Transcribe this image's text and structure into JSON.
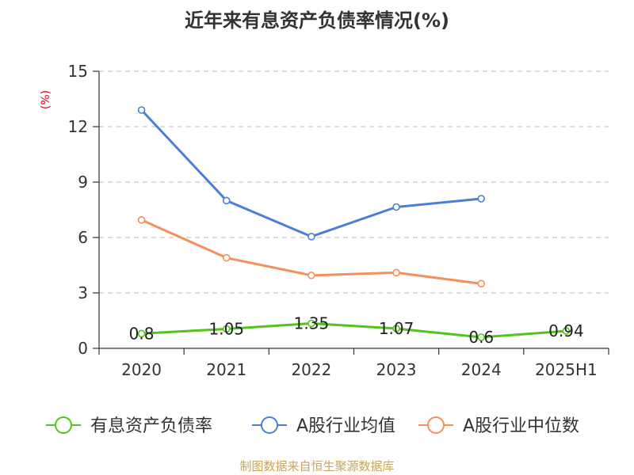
{
  "chart_data": {
    "type": "line",
    "title": "近年来有息资产负债率情况(%)",
    "ylabel": "(%)",
    "categories": [
      "2020",
      "2021",
      "2022",
      "2023",
      "2024",
      "2025H1"
    ],
    "ylim": [
      0,
      15
    ],
    "yticks": [
      "0",
      "3",
      "6",
      "9",
      "12",
      "15"
    ],
    "grid": true,
    "series": [
      {
        "name": "有息资产负债率",
        "color": "#52c41a",
        "values": [
          0.8,
          1.05,
          1.35,
          1.07,
          0.6,
          0.94
        ],
        "data_labels": [
          "0.8",
          "1.05",
          "1.35",
          "1.07",
          "0.6",
          "0.94"
        ]
      },
      {
        "name": "A股行业均值",
        "color": "#4a7fd8",
        "values": [
          12.9,
          8.0,
          6.05,
          7.65,
          8.1,
          null
        ]
      },
      {
        "name": "A股行业中位数",
        "color": "#f5905a",
        "values": [
          6.95,
          4.9,
          3.95,
          4.1,
          3.5,
          null
        ]
      }
    ],
    "legend_position": "bottom",
    "source": "制图数据来自恒生聚源数据库"
  }
}
